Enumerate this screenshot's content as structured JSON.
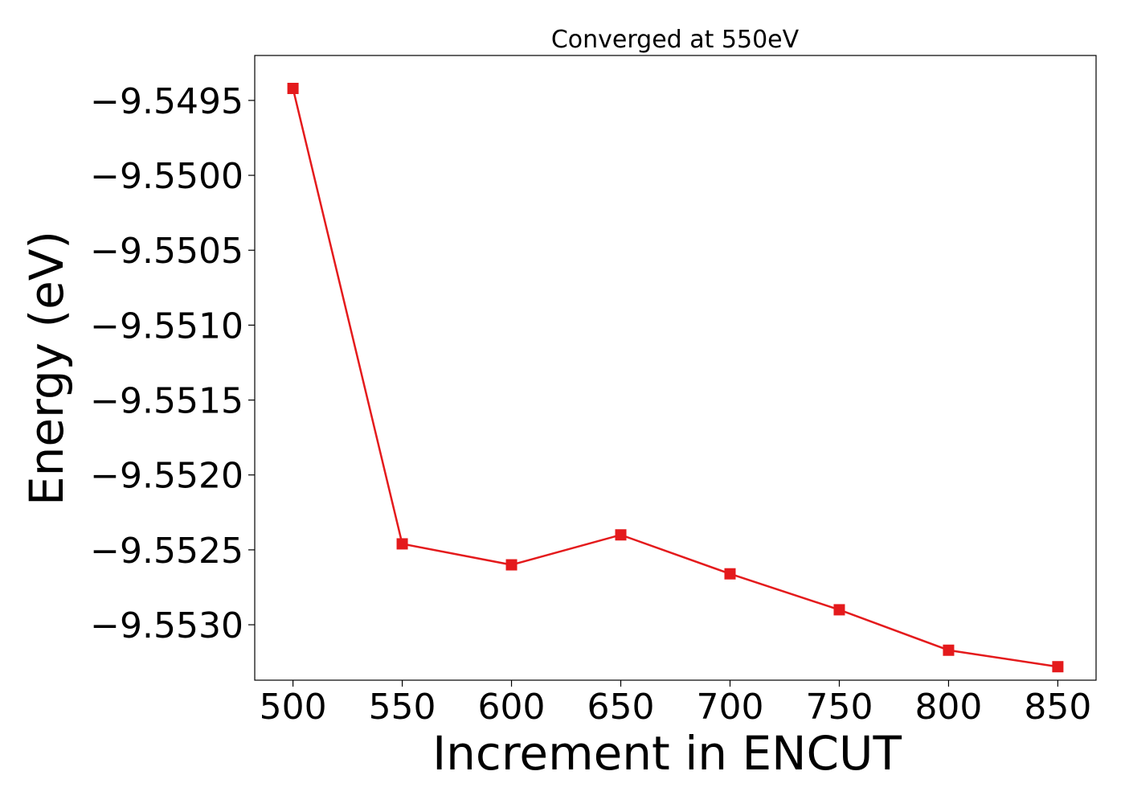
{
  "chart_data": {
    "type": "line",
    "title": "Converged at 550eV",
    "xlabel": "Increment in ENCUT",
    "ylabel": "Energy (eV)",
    "x": [
      500,
      550,
      600,
      650,
      700,
      750,
      800,
      850
    ],
    "series": [
      {
        "values": [
          -9.54942,
          -9.55246,
          -9.5526,
          -9.5524,
          -9.55266,
          -9.5529,
          -9.55317,
          -9.55328
        ],
        "color": "#e41a1c",
        "marker": "square"
      }
    ],
    "xticks": [
      500,
      550,
      600,
      650,
      700,
      750,
      800,
      850
    ],
    "xtick_labels": [
      "500",
      "550",
      "600",
      "650",
      700,
      "750",
      "800",
      "850"
    ],
    "yticks": [
      -9.5495,
      -9.55,
      -9.5505,
      -9.551,
      -9.5515,
      -9.552,
      -9.5525,
      -9.553
    ],
    "ytick_labels": [
      "−9.5495",
      "−9.5500",
      "−9.5505",
      "−9.5510",
      "−9.5515",
      "−9.5520",
      "−9.5525",
      "−9.5530"
    ],
    "xlim": [
      482.5,
      867.5
    ],
    "ylim": [
      -9.55337,
      -9.5492
    ],
    "grid": false,
    "legend": "none"
  }
}
